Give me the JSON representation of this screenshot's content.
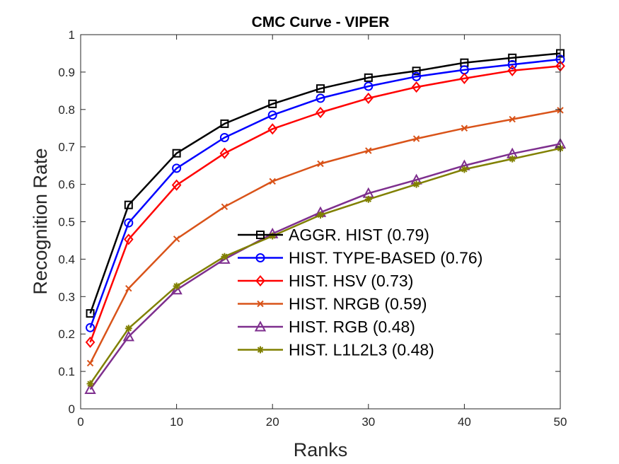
{
  "chart_data": {
    "type": "line",
    "title": "CMC Curve - VIPER",
    "xlabel": "Ranks",
    "ylabel": "Recognition Rate",
    "xlim": [
      0,
      50
    ],
    "ylim": [
      0,
      1
    ],
    "xticks": [
      "0",
      "10",
      "20",
      "30",
      "40",
      "50"
    ],
    "yticks": [
      "0",
      "0.1",
      "0.2",
      "0.3",
      "0.4",
      "0.5",
      "0.6",
      "0.7",
      "0.8",
      "0.9",
      "1"
    ],
    "grid": false,
    "legend_position": "lower-right",
    "x": [
      1,
      5,
      10,
      15,
      20,
      25,
      30,
      35,
      40,
      45,
      50
    ],
    "series": [
      {
        "name": "AGGR. HIST (0.79)",
        "color": "#000000",
        "marker": "square",
        "values": [
          0.255,
          0.545,
          0.683,
          0.762,
          0.815,
          0.856,
          0.885,
          0.903,
          0.925,
          0.938,
          0.95
        ]
      },
      {
        "name": "HIST. TYPE-BASED (0.76)",
        "color": "#0000ff",
        "marker": "circle",
        "values": [
          0.217,
          0.497,
          0.643,
          0.725,
          0.785,
          0.83,
          0.862,
          0.888,
          0.906,
          0.92,
          0.934
        ]
      },
      {
        "name": "HIST. HSV (0.73)",
        "color": "#ff0000",
        "marker": "diamond",
        "values": [
          0.178,
          0.453,
          0.598,
          0.683,
          0.748,
          0.792,
          0.83,
          0.86,
          0.883,
          0.904,
          0.916
        ]
      },
      {
        "name": "HIST. NRGB (0.59)",
        "color": "#d95319",
        "marker": "x",
        "values": [
          0.122,
          0.322,
          0.454,
          0.54,
          0.608,
          0.655,
          0.69,
          0.722,
          0.75,
          0.774,
          0.798
        ]
      },
      {
        "name": "HIST. RGB (0.48)",
        "color": "#7e2f8e",
        "marker": "triangle",
        "values": [
          0.052,
          0.193,
          0.318,
          0.4,
          0.468,
          0.525,
          0.576,
          0.612,
          0.65,
          0.682,
          0.708
        ]
      },
      {
        "name": "HIST. L1L2L3 (0.48)",
        "color": "#808000",
        "marker": "star",
        "values": [
          0.067,
          0.215,
          0.328,
          0.407,
          0.462,
          0.518,
          0.56,
          0.6,
          0.64,
          0.668,
          0.696
        ]
      }
    ]
  }
}
